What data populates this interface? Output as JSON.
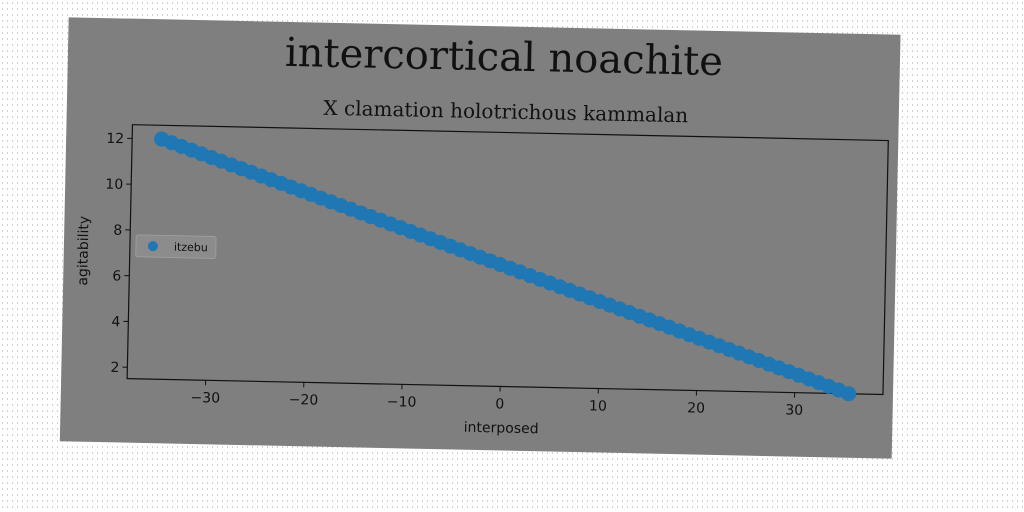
{
  "colors": {
    "canvas": "#ffffff",
    "figure_bg": "#7f7f7f",
    "series": "#1f77b4",
    "text": "#111111",
    "axes": "#111111"
  },
  "chart_data": {
    "type": "scatter",
    "title": "intercortical noachite",
    "subtitle": "X clamation holotrichous kammalan",
    "xlabel": "interposed",
    "ylabel": "agitability",
    "xlim": [
      -38,
      39
    ],
    "ylim": [
      1.5,
      12.6
    ],
    "xticks": [
      -30,
      -20,
      -10,
      0,
      10,
      20,
      30
    ],
    "yticks": [
      2,
      4,
      6,
      8,
      10,
      12
    ],
    "legend_position": "center-left",
    "grid": false,
    "series": [
      {
        "name": "itzebu",
        "color": "#1f77b4",
        "x_start": -35,
        "x_end": 35.5,
        "y_start": 12.0,
        "y_end": 1.5,
        "n_points": 70
      }
    ]
  }
}
